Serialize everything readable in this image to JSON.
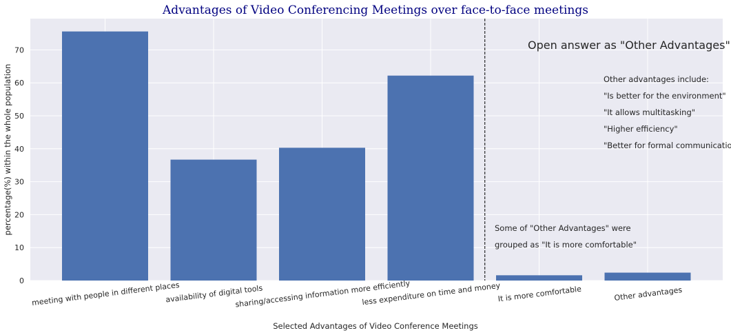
{
  "chart_data": {
    "type": "bar",
    "title": "Advantages of Video Conferencing Meetings over face-to-face meetings",
    "xlabel": "Selected Advantages of Video Conference Meetings",
    "ylabel": "percentage(%) within the whole population",
    "categories": [
      "meeting with people in different places",
      "availability of digital tools",
      "sharing/accessing information more efficiently",
      "less expenditure on time and money",
      "It is more comfortable",
      "Other advantages"
    ],
    "values": [
      75.6,
      36.7,
      40.3,
      62.2,
      1.6,
      2.4
    ],
    "ylim": [
      0,
      79.5
    ],
    "yticks": [
      0,
      10,
      20,
      30,
      40,
      50,
      60,
      70
    ],
    "grid": true,
    "bar_color": "#4c72b0",
    "background_color": "#eaeaf2",
    "title_color": "#000080",
    "divider": {
      "between_index": 3.5,
      "style": "dashed",
      "color": "#000000"
    },
    "annotations": {
      "open_answer_heading": "Open answer as \"Other Advantages\"",
      "other_list": [
        "Other advantages include:",
        "\"Is better for the environment\"",
        "\"It allows multitasking\"",
        "\"Higher efficiency\"",
        "\"Better for formal communication\""
      ],
      "grouped_note": [
        "Some of \"Other Advantages\" were",
        "grouped as \"It is more comfortable\""
      ]
    }
  }
}
